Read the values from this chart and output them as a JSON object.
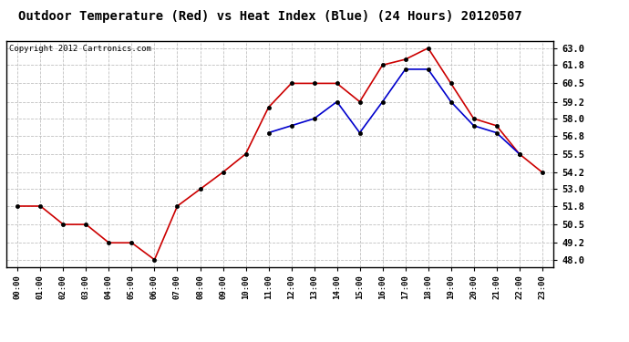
{
  "title": "Outdoor Temperature (Red) vs Heat Index (Blue) (24 Hours) 20120507",
  "copyright": "Copyright 2012 Cartronics.com",
  "x_labels": [
    "00:00",
    "01:00",
    "02:00",
    "03:00",
    "04:00",
    "05:00",
    "06:00",
    "07:00",
    "08:00",
    "09:00",
    "10:00",
    "11:00",
    "12:00",
    "13:00",
    "14:00",
    "15:00",
    "16:00",
    "17:00",
    "18:00",
    "19:00",
    "20:00",
    "21:00",
    "22:00",
    "23:00"
  ],
  "red_values": [
    51.8,
    51.8,
    50.5,
    50.5,
    49.2,
    49.2,
    48.0,
    51.8,
    53.0,
    54.2,
    55.5,
    58.8,
    60.5,
    60.5,
    60.5,
    59.2,
    61.8,
    62.2,
    63.0,
    60.5,
    58.0,
    57.5,
    55.5,
    54.2
  ],
  "blue_values": [
    null,
    null,
    null,
    null,
    null,
    null,
    null,
    null,
    null,
    null,
    null,
    57.0,
    57.5,
    58.0,
    59.2,
    57.0,
    59.2,
    61.5,
    61.5,
    59.2,
    57.5,
    57.0,
    55.5,
    null
  ],
  "y_ticks": [
    48.0,
    49.2,
    50.5,
    51.8,
    53.0,
    54.2,
    55.5,
    56.8,
    58.0,
    59.2,
    60.5,
    61.8,
    63.0
  ],
  "ylim": [
    47.5,
    63.5
  ],
  "red_color": "#cc0000",
  "blue_color": "#0000cc",
  "bg_color": "#ffffff",
  "grid_color": "#c0c0c0",
  "title_fontsize": 10,
  "copyright_fontsize": 6.5
}
